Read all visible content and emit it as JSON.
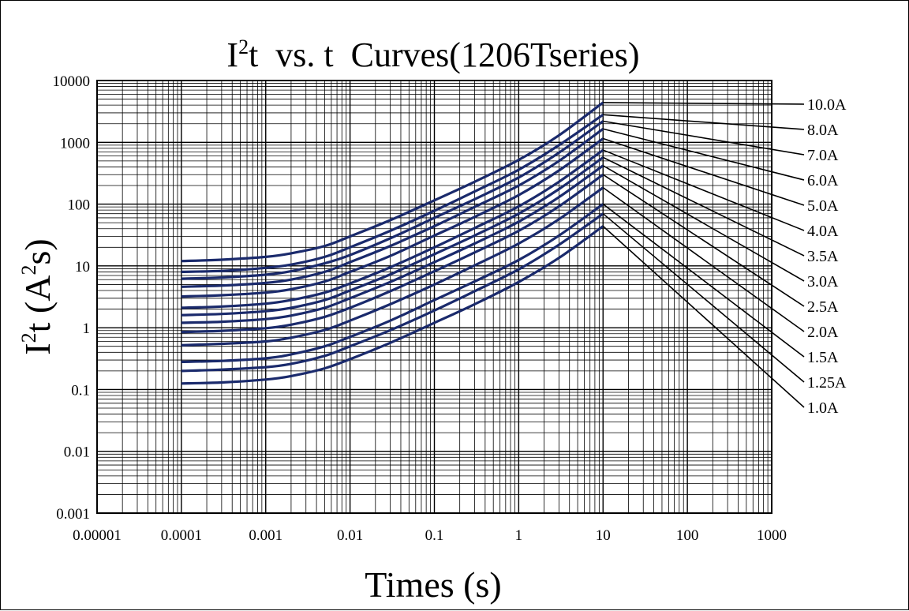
{
  "chart_data": {
    "type": "line",
    "title": {
      "prefix": "I",
      "sup": "2",
      "rest": "t  vs. t  Curves(1206Tseries)"
    },
    "xlabel": "Times (s)",
    "ylabel": {
      "prefix": "I",
      "sup": "2",
      "mid": "t (A",
      "sup2": "2",
      "end": "s)"
    },
    "x_scale": "log",
    "y_scale": "log",
    "xlim": [
      1e-05,
      1000
    ],
    "ylim": [
      0.001,
      10000
    ],
    "x_ticks": [
      "0.00001",
      "0.0001",
      "0.001",
      "0.01",
      "0.1",
      "1",
      "10",
      "100",
      "1000"
    ],
    "y_ticks": [
      "0.001",
      "0.01",
      "0.1",
      "1",
      "10",
      "100",
      "1000",
      "10000"
    ],
    "grid": true,
    "line_color": "#1a2a6c",
    "x": [
      0.0001,
      0.0003,
      0.001,
      0.002,
      0.005,
      0.01,
      0.03,
      0.1,
      0.3,
      1,
      3,
      10
    ],
    "series": [
      {
        "name": "10.0A",
        "values": [
          12,
          12.6,
          14,
          16,
          21,
          30,
          55,
          115,
          230,
          520,
          1300,
          4400
        ]
      },
      {
        "name": "8.0A",
        "values": [
          8,
          8.3,
          9.3,
          10.5,
          14,
          20,
          37,
          78,
          160,
          360,
          900,
          2800
        ]
      },
      {
        "name": "7.0A",
        "values": [
          6.2,
          6.5,
          7.2,
          8.2,
          11,
          15,
          28,
          60,
          120,
          270,
          680,
          2200
        ]
      },
      {
        "name": "6.0A",
        "values": [
          4.6,
          4.8,
          5.3,
          6,
          8,
          11.5,
          21,
          44,
          90,
          200,
          500,
          1650
        ]
      },
      {
        "name": "5.0A",
        "values": [
          3.2,
          3.35,
          3.7,
          4.2,
          5.6,
          8,
          14.5,
          31,
          62,
          140,
          350,
          1150
        ]
      },
      {
        "name": "4.0A",
        "values": [
          2.1,
          2.2,
          2.45,
          2.8,
          3.7,
          5.2,
          9.5,
          20,
          41,
          92,
          230,
          750
        ]
      },
      {
        "name": "3.5A",
        "values": [
          1.6,
          1.67,
          1.85,
          2.1,
          2.8,
          4,
          7.3,
          15.5,
          31,
          70,
          175,
          570
        ]
      },
      {
        "name": "3.0A",
        "values": [
          1.2,
          1.25,
          1.38,
          1.57,
          2.1,
          3,
          5.5,
          11.5,
          23,
          52,
          130,
          420
        ]
      },
      {
        "name": "2.5A",
        "values": [
          0.85,
          0.89,
          0.98,
          1.12,
          1.5,
          2.1,
          3.9,
          8.2,
          16.5,
          37,
          92,
          300
        ]
      },
      {
        "name": "2.0A",
        "values": [
          0.52,
          0.55,
          0.6,
          0.69,
          0.92,
          1.3,
          2.4,
          5,
          10.2,
          23,
          57,
          185
        ]
      },
      {
        "name": "1.5A",
        "values": [
          0.28,
          0.29,
          0.32,
          0.37,
          0.5,
          0.71,
          1.3,
          2.8,
          5.6,
          12.5,
          31,
          100
        ]
      },
      {
        "name": "1.25A",
        "values": [
          0.2,
          0.21,
          0.23,
          0.26,
          0.35,
          0.5,
          0.91,
          1.9,
          3.9,
          8.8,
          22,
          70
        ]
      },
      {
        "name": "1.0A",
        "values": [
          0.125,
          0.13,
          0.145,
          0.165,
          0.22,
          0.31,
          0.57,
          1.2,
          2.4,
          5.5,
          13.5,
          44
        ]
      }
    ]
  }
}
